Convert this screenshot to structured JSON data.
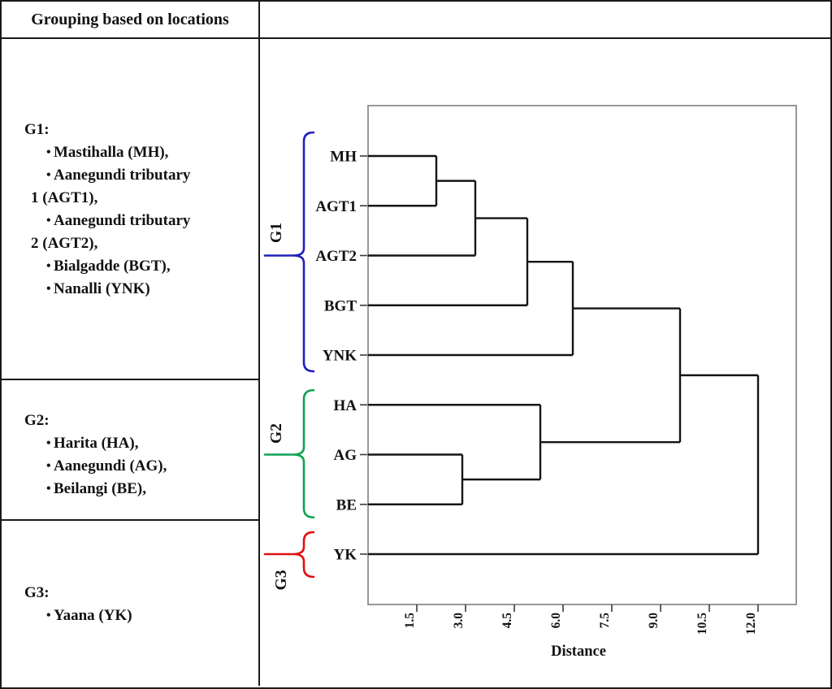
{
  "header": {
    "title": "Grouping based on locations"
  },
  "bullet_char": "•",
  "groups": [
    {
      "label": "G1:",
      "brace_color": "#2020bb",
      "items": [
        [
          "Mastihalla (MH),"
        ],
        [
          "Aanegundi tributary",
          "1 (AGT1),"
        ],
        [
          "Aanegundi tributary",
          "2 (AGT2),"
        ],
        [
          "Bialgadde (BGT),"
        ],
        [
          "Nanalli (YNK)"
        ]
      ]
    },
    {
      "label": "G2:",
      "brace_color": "#11a253",
      "items": [
        [
          "Harita (HA),"
        ],
        [
          "Aanegundi (AG),"
        ],
        [
          "Beilangi (BE),"
        ]
      ]
    },
    {
      "label": "G3:",
      "brace_color": "#e01111",
      "items": [
        [
          "Yaana (YK)"
        ]
      ]
    }
  ],
  "chart_data": {
    "type": "dendrogram",
    "orientation": "horizontal",
    "xlabel": "Distance",
    "x_ticks": [
      1.5,
      3.0,
      4.5,
      6.0,
      7.5,
      9.0,
      10.5,
      12.0
    ],
    "xlim": [
      0,
      13.2
    ],
    "grid": false,
    "leaves": [
      "MH",
      "AGT1",
      "AGT2",
      "BGT",
      "YNK",
      "HA",
      "AG",
      "BE",
      "YK"
    ],
    "merges": [
      {
        "id": "n1",
        "children": [
          "MH",
          "AGT1"
        ],
        "distance": 2.1
      },
      {
        "id": "n2",
        "children": [
          "n1",
          "AGT2"
        ],
        "distance": 3.3
      },
      {
        "id": "n3",
        "children": [
          "n2",
          "BGT"
        ],
        "distance": 4.9
      },
      {
        "id": "n4",
        "children": [
          "n3",
          "YNK"
        ],
        "distance": 6.3
      },
      {
        "id": "n5",
        "children": [
          "AG",
          "BE"
        ],
        "distance": 2.9
      },
      {
        "id": "n6",
        "children": [
          "HA",
          "n5"
        ],
        "distance": 5.3
      },
      {
        "id": "n7",
        "children": [
          "n4",
          "n6"
        ],
        "distance": 9.6
      },
      {
        "id": "n8",
        "children": [
          "n7",
          "YK"
        ],
        "distance": 12.0
      }
    ],
    "cluster_braces": [
      {
        "label": "G1",
        "color": "#2020bb",
        "leaves": [
          "MH",
          "YNK"
        ]
      },
      {
        "label": "G2",
        "color": "#11a253",
        "leaves": [
          "HA",
          "BE"
        ]
      },
      {
        "label": "G3",
        "color": "#e01111",
        "leaves": [
          "YK",
          "YK"
        ]
      }
    ]
  }
}
